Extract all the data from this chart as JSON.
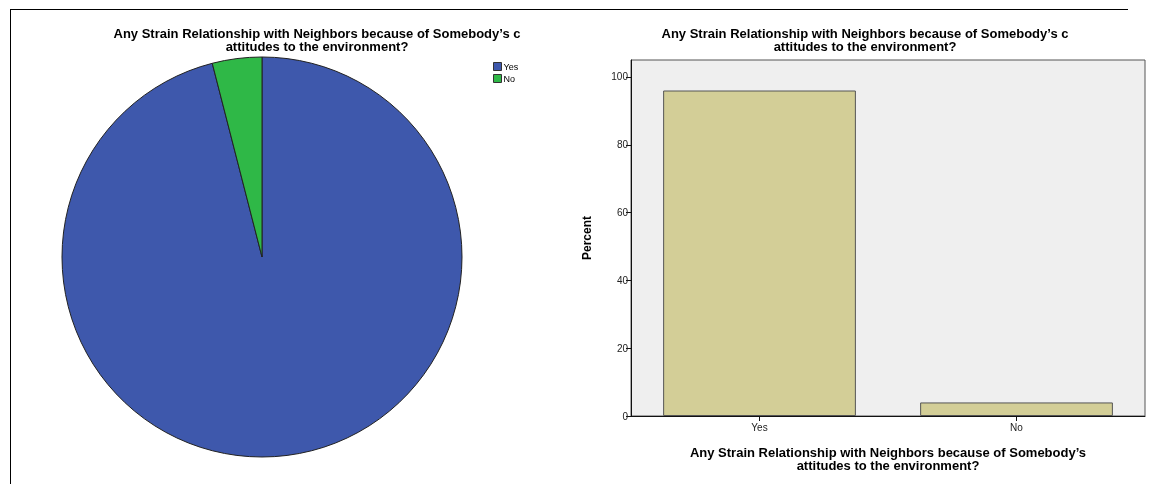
{
  "chart_data": [
    {
      "type": "pie",
      "title": "Any Strain Relationship with Neighbors because of Somebody’s c\nattitudes to the environment?",
      "categories": [
        "Yes",
        "No"
      ],
      "values": [
        96,
        4
      ],
      "colors": [
        "#3e58ac",
        "#2fb847"
      ],
      "legend": "top right"
    },
    {
      "type": "bar",
      "title": "Any Strain Relationship with Neighbors because of Somebody’s c\nattitudes to the environment?",
      "xlabel": "Any Strain Relationship with Neighbors because of Somebody’s\nattitudes to the environment?",
      "ylabel": "Percent",
      "categories": [
        "Yes",
        "No"
      ],
      "values": [
        96,
        4
      ],
      "color": "#d3ce97",
      "ylim": [
        0,
        105
      ],
      "yticks": [
        0,
        20,
        40,
        60,
        80,
        100
      ],
      "grid": false
    }
  ]
}
